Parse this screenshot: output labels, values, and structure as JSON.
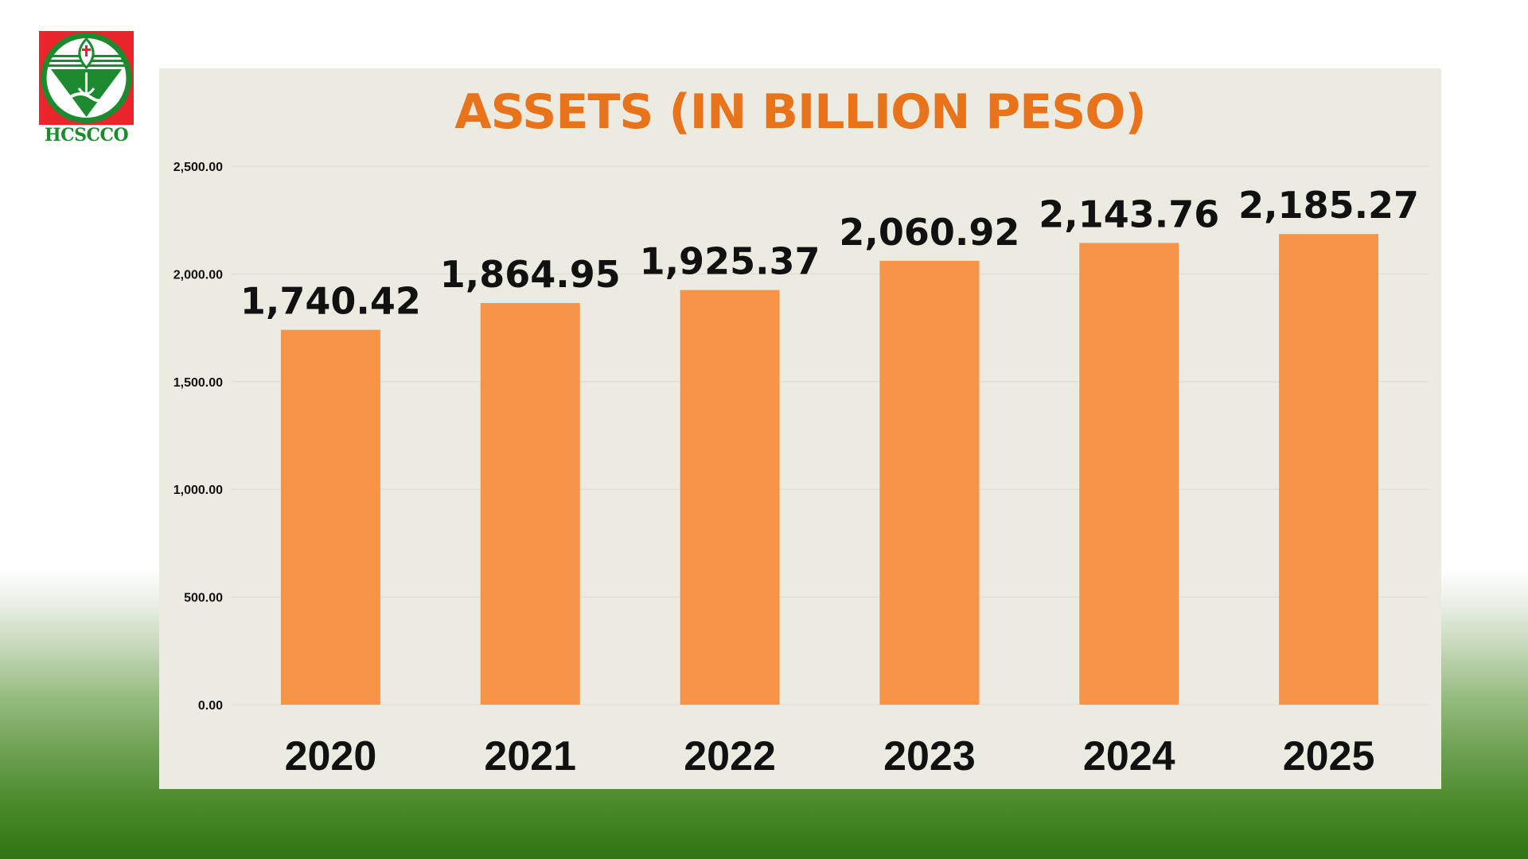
{
  "logo": {
    "text": "HCSCCO",
    "colors": {
      "red": "#e8262b",
      "green": "#1c8a2e"
    }
  },
  "chart_data": {
    "type": "bar",
    "title": "ASSETS (IN BILLION PESO)",
    "categories": [
      "2020",
      "2021",
      "2022",
      "2023",
      "2024",
      "2025"
    ],
    "values": [
      1740.42,
      1864.95,
      1925.37,
      2060.92,
      2143.76,
      2185.27
    ],
    "data_labels": [
      "1,740.42",
      "1,864.95",
      "1,925.37",
      "2,060.92",
      "2,143.76",
      "2,185.27"
    ],
    "y_ticks": [
      0,
      500,
      1000,
      1500,
      2000,
      2500
    ],
    "y_tick_labels": [
      "0.00",
      "500.00",
      "1,000.00",
      "1,500.00",
      "2,000.00",
      "2,500.00"
    ],
    "ylim": [
      0,
      2500
    ],
    "xlabel": "",
    "ylabel": "",
    "grid": true,
    "legend": "none",
    "colors": {
      "bar": "#f6954a",
      "title": "#e8731a",
      "text": "#111111",
      "background": "#ecebe2"
    }
  }
}
